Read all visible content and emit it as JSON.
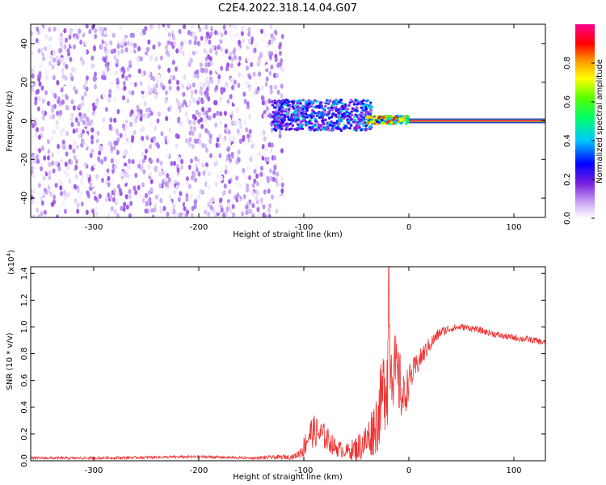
{
  "figure_title": "C2E4.2022.318.14.04.G07",
  "chart_data": [
    {
      "type": "heatmap",
      "xlabel": "Height of straight line (km)",
      "ylabel": "Frequency (Hz)",
      "xlim": [
        -360,
        130
      ],
      "ylim": [
        -50,
        50
      ],
      "x_ticks": [
        -300,
        -200,
        -100,
        0,
        100
      ],
      "y_ticks": [
        -40,
        -20,
        0,
        20,
        40
      ],
      "colorbar": {
        "label": "Normalized spectral amplitude",
        "range": [
          0.0,
          1.0
        ],
        "ticks": [
          "0.0",
          "0.2",
          "0.4",
          "0.6",
          "0.8"
        ],
        "colormap": [
          "#ffffff",
          "#b78ef0",
          "#8a2be2",
          "#4b00ff",
          "#0000ff",
          "#00c8ff",
          "#00ff7f",
          "#3cff00",
          "#ffff00",
          "#ff8c00",
          "#ff0000",
          "#ff0080"
        ]
      },
      "regions": [
        {
          "x_range": [
            -360,
            -120
          ],
          "f_range": [
            -50,
            50
          ],
          "amplitude_range": [
            0.0,
            0.15
          ]
        },
        {
          "x_range": [
            -130,
            -35
          ],
          "f_center": 3,
          "f_halfwidth": 8,
          "amplitude_range": [
            0.1,
            0.5
          ]
        },
        {
          "x_range": [
            -40,
            0
          ],
          "f_center": 0.5,
          "f_halfwidth": 2,
          "amplitude_range": [
            0.3,
            0.9
          ]
        },
        {
          "x_range": [
            0,
            130
          ],
          "f_center": 0,
          "f_halfwidth": 1.5,
          "amplitude": 1.0
        }
      ]
    },
    {
      "type": "line",
      "xlabel": "Height of straight line (km)",
      "ylabel": "SNR (10 * v/v)",
      "y_multiplier": "(x10",
      "y_multiplier_exp": "4",
      "y_multiplier_close": ")",
      "xlim": [
        -360,
        130
      ],
      "ylim": [
        0,
        1.45
      ],
      "x_ticks": [
        -300,
        -200,
        -100,
        0,
        100
      ],
      "y_ticks": [
        "0.0",
        "0.2",
        "0.4",
        "0.6",
        "0.8",
        "1.0",
        "1.2",
        "1.4"
      ],
      "color": "#ee3333",
      "x": [
        -360,
        -300,
        -200,
        -150,
        -110,
        -105,
        -100,
        -95,
        -90,
        -80,
        -70,
        -60,
        -50,
        -40,
        -30,
        -25,
        -20,
        -19,
        -18,
        -15,
        -12,
        -10,
        -8,
        -5,
        0,
        10,
        20,
        30,
        40,
        50,
        60,
        70,
        80,
        90,
        100,
        110,
        120,
        130
      ],
      "y": [
        0.02,
        0.02,
        0.03,
        0.02,
        0.03,
        0.05,
        0.1,
        0.2,
        0.22,
        0.18,
        0.1,
        0.07,
        0.09,
        0.15,
        0.3,
        0.5,
        0.7,
        1.45,
        0.8,
        0.7,
        0.65,
        0.6,
        0.55,
        0.45,
        0.6,
        0.75,
        0.87,
        0.96,
        0.99,
        1.0,
        0.99,
        0.97,
        0.95,
        0.93,
        0.92,
        0.91,
        0.9,
        0.88
      ],
      "noise": [
        0.01,
        0.01,
        0.01,
        0.01,
        0.02,
        0.03,
        0.08,
        0.12,
        0.12,
        0.1,
        0.07,
        0.05,
        0.1,
        0.14,
        0.25,
        0.3,
        0.45,
        0.0,
        0.35,
        0.3,
        0.28,
        0.26,
        0.25,
        0.2,
        0.12,
        0.08,
        0.06,
        0.04,
        0.03,
        0.025,
        0.025,
        0.025,
        0.025,
        0.025,
        0.025,
        0.025,
        0.025,
        0.025
      ]
    }
  ]
}
